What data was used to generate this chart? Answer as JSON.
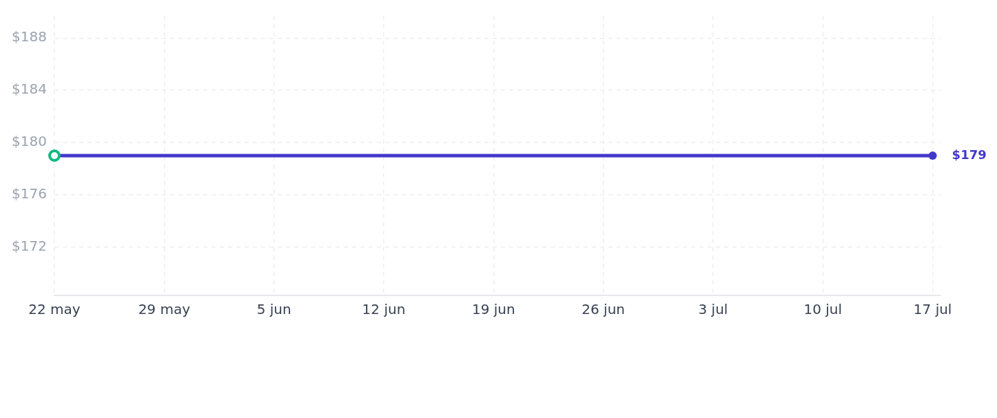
{
  "chart_data": {
    "type": "line",
    "x": [
      "--05-22",
      "--07-17"
    ],
    "series": [
      {
        "color": "#4338ca",
        "colors": [
          "#10b981",
          "#4338ca"
        ],
        "values": [
          179,
          179
        ],
        "value_labels": [
          null,
          "$179"
        ]
      }
    ],
    "xlim": [
      "--05-22",
      "--07-17T12:00"
    ],
    "xticks": [
      {
        "value": "--05-22",
        "label": "22 may"
      },
      {
        "value": "--05-29",
        "label": "29 may"
      },
      {
        "value": "--06-05",
        "label": "5 jun"
      },
      {
        "value": "--06-12",
        "label": "12 jun"
      },
      {
        "value": "--06-19",
        "label": "19 jun"
      },
      {
        "value": "--06-26",
        "label": "26 jun"
      },
      {
        "value": "--07-03",
        "label": "3 jul"
      },
      {
        "value": "--07-10",
        "label": "10 jul"
      },
      {
        "value": "--07-17",
        "label": "17 jul"
      }
    ],
    "ylim": [
      168.3,
      189.7
    ],
    "yticks": [
      {
        "value": 172,
        "label": "$172"
      },
      {
        "value": 176,
        "label": "$176"
      },
      {
        "value": 180,
        "label": "$180"
      },
      {
        "value": 184,
        "label": "$184"
      },
      {
        "value": 188,
        "label": "$188"
      }
    ],
    "grid": true,
    "marker": "circle",
    "line_style": "solid"
  }
}
